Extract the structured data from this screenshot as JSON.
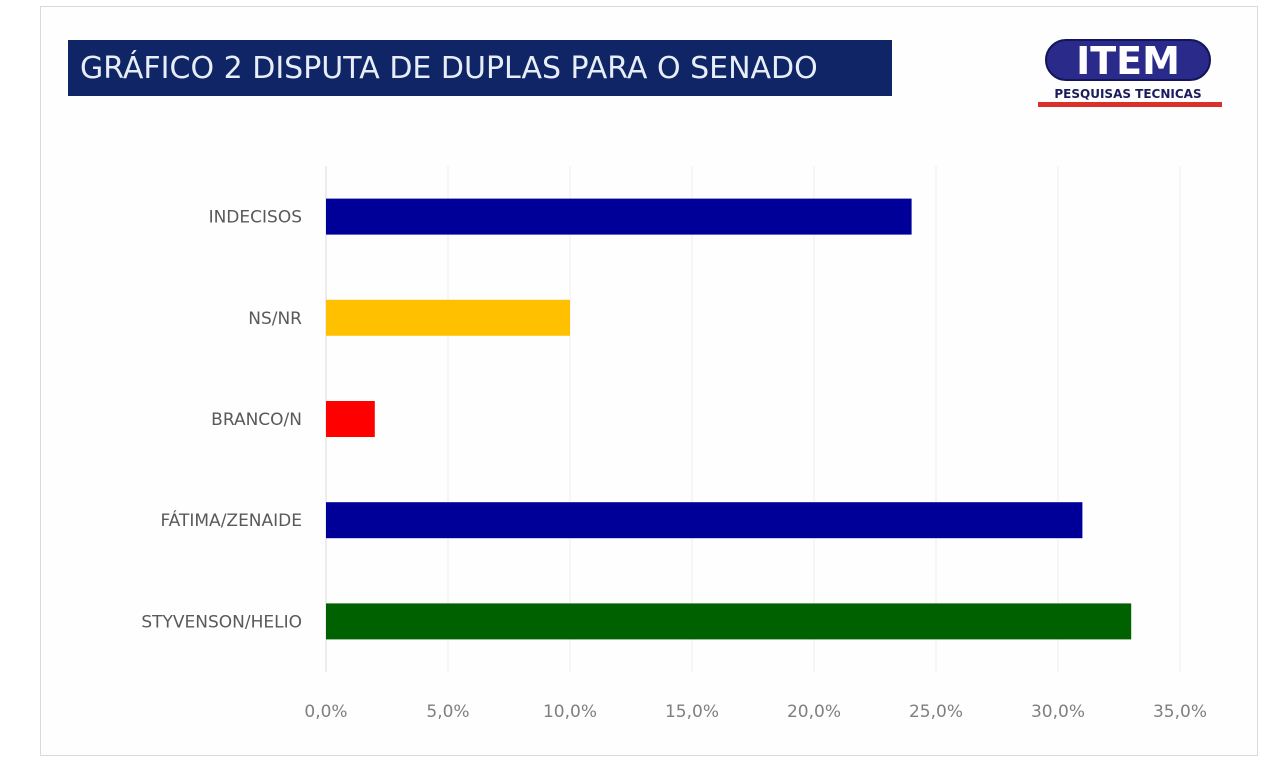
{
  "header": {
    "title": "GRÁFICO 2 DISPUTA DE DUPLAS PARA O SENADO"
  },
  "logo": {
    "brand": "ITEM",
    "tagline": "PESQUISAS TECNICAS"
  },
  "chart_data": {
    "type": "bar",
    "orientation": "horizontal",
    "title": "GRÁFICO 2 DISPUTA DE DUPLAS PARA O SENADO",
    "xlabel": "",
    "ylabel": "",
    "categories": [
      "INDECISOS",
      "NS/NR",
      "BRANCO/N",
      "FÁTIMA/ZENAIDE",
      "STYVENSON/HELIO"
    ],
    "values": [
      24.0,
      10.0,
      2.0,
      31.0,
      33.0
    ],
    "unit": "%",
    "colors": [
      "#000099",
      "#ffc000",
      "#ff0000",
      "#000099",
      "#006100"
    ],
    "xlim": [
      0,
      35
    ],
    "x_ticks": [
      0,
      5,
      10,
      15,
      20,
      25,
      30,
      35
    ],
    "x_tick_labels": [
      "0,0%",
      "5,0%",
      "10,0%",
      "15,0%",
      "20,0%",
      "25,0%",
      "30,0%",
      "35,0%"
    ],
    "grid": true,
    "legend": "none"
  }
}
